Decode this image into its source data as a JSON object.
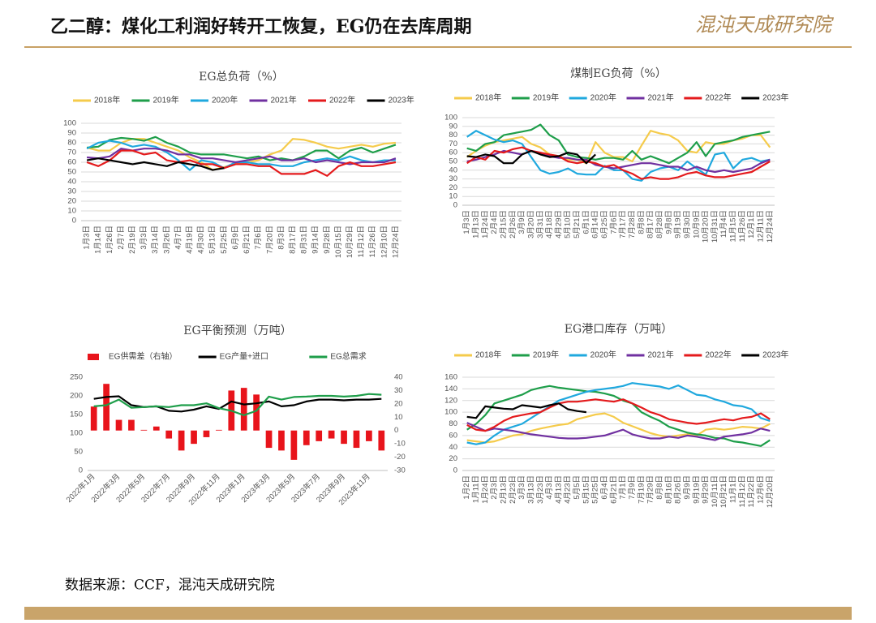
{
  "header": {
    "title": "乙二醇：煤化工利润好转开工恢复，EG仍在去库周期",
    "logo": "混沌天成研究院"
  },
  "footer": {
    "source": "数据来源：CCF，混沌天成研究院"
  },
  "chart_data": [
    {
      "type": "line",
      "title": "EG总负荷（%）",
      "ylim": [
        0,
        100
      ],
      "yticks": [
        0,
        10,
        20,
        30,
        40,
        50,
        60,
        70,
        80,
        90,
        100
      ],
      "grid": true,
      "categories": [
        "1月3日",
        "1月14日",
        "1月26日",
        "2月7日",
        "2月19日",
        "3月3日",
        "3月14日",
        "3月26日",
        "4月7日",
        "4月19日",
        "4月30日",
        "5月13日",
        "5月25日",
        "6月9日",
        "6月21日",
        "7月6日",
        "7月20日",
        "8月3日",
        "8月17日",
        "8月31日",
        "9月14日",
        "9月28日",
        "10月15日",
        "10月29日",
        "11月12日",
        "11月26日",
        "12月10日",
        "12月24日"
      ],
      "series": [
        {
          "name": "2018年",
          "color": "#f5cb4b",
          "values": [
            75,
            72,
            72,
            80,
            84,
            84,
            80,
            76,
            72,
            65,
            60,
            52,
            55,
            58,
            60,
            62,
            68,
            72,
            84,
            83,
            80,
            76,
            74,
            76,
            78,
            76,
            79,
            80
          ]
        },
        {
          "name": "2019年",
          "color": "#1e9e4a",
          "values": [
            75,
            76,
            83,
            85,
            84,
            82,
            86,
            80,
            76,
            70,
            68,
            68,
            68,
            66,
            64,
            66,
            62,
            64,
            62,
            66,
            72,
            72,
            64,
            72,
            75,
            70,
            74,
            78
          ]
        },
        {
          "name": "2020年",
          "color": "#1fa8de",
          "values": [
            74,
            80,
            82,
            80,
            76,
            78,
            76,
            70,
            62,
            52,
            62,
            60,
            54,
            60,
            60,
            58,
            58,
            56,
            56,
            60,
            62,
            64,
            62,
            66,
            62,
            60,
            62,
            62
          ]
        },
        {
          "name": "2021年",
          "color": "#7030a0",
          "values": [
            65,
            64,
            66,
            74,
            72,
            74,
            74,
            72,
            68,
            68,
            64,
            64,
            62,
            60,
            62,
            64,
            66,
            62,
            62,
            64,
            60,
            62,
            60,
            58,
            60,
            60,
            60,
            64
          ]
        },
        {
          "name": "2022年",
          "color": "#e41a1c",
          "values": [
            60,
            56,
            62,
            72,
            72,
            68,
            70,
            62,
            60,
            62,
            58,
            58,
            54,
            58,
            58,
            56,
            56,
            48,
            48,
            48,
            52,
            46,
            56,
            60,
            56,
            56,
            58,
            60
          ]
        },
        {
          "name": "2023年",
          "color": "#000000",
          "values": [
            62,
            64,
            62,
            60,
            58,
            60,
            58,
            56,
            60,
            58,
            56,
            52,
            54,
            null,
            null,
            null,
            null,
            null,
            null,
            null,
            null,
            null,
            null,
            null,
            null,
            null,
            null,
            null
          ]
        }
      ]
    },
    {
      "type": "line",
      "title": "煤制EG负荷（%）",
      "ylim": [
        0,
        100
      ],
      "yticks": [
        0,
        10,
        20,
        30,
        40,
        50,
        60,
        70,
        80,
        90,
        100
      ],
      "grid": true,
      "categories": [
        "1月3日",
        "1月13日",
        "1月24日",
        "2月4日",
        "2月15日",
        "2月26日",
        "3月9日",
        "3月20日",
        "3月31日",
        "4月18日",
        "4月29日",
        "5月10日",
        "5月21日",
        "6月1日",
        "6月14日",
        "6月25日",
        "7月6日",
        "7月17日",
        "7月28日",
        "8月8日",
        "8月17日",
        "8月28日",
        "9月8日",
        "9月19日",
        "9月30日",
        "10月9日",
        "10月20日",
        "10月31日",
        "11月4日",
        "11月15日",
        "11月26日",
        "12月1日",
        "12月11日",
        "12月24日"
      ],
      "series": [
        {
          "name": "2018年",
          "color": "#f5cb4b",
          "values": [
            55,
            62,
            68,
            72,
            74,
            76,
            78,
            70,
            66,
            58,
            56,
            52,
            52,
            48,
            72,
            60,
            55,
            55,
            50,
            68,
            85,
            82,
            80,
            74,
            62,
            60,
            72,
            70,
            70,
            74,
            76,
            80,
            80,
            66
          ]
        },
        {
          "name": "2019年",
          "color": "#1e9e4a",
          "values": [
            65,
            62,
            70,
            72,
            80,
            82,
            84,
            86,
            92,
            80,
            74,
            58,
            55,
            54,
            52,
            54,
            54,
            52,
            62,
            52,
            56,
            52,
            48,
            54,
            60,
            72,
            56,
            70,
            72,
            74,
            78,
            80,
            82,
            84
          ]
        },
        {
          "name": "2020年",
          "color": "#1fa8de",
          "values": [
            78,
            85,
            80,
            75,
            72,
            74,
            70,
            55,
            40,
            36,
            38,
            42,
            36,
            35,
            35,
            45,
            40,
            40,
            30,
            28,
            38,
            42,
            44,
            40,
            50,
            42,
            35,
            58,
            60,
            42,
            52,
            54,
            50,
            52
          ]
        },
        {
          "name": "2021年",
          "color": "#7030a0",
          "values": [
            50,
            52,
            55,
            58,
            62,
            60,
            58,
            62,
            60,
            56,
            54,
            54,
            52,
            52,
            46,
            44,
            42,
            44,
            46,
            48,
            48,
            46,
            44,
            44,
            40,
            44,
            40,
            38,
            40,
            38,
            40,
            42,
            48,
            52
          ]
        },
        {
          "name": "2022年",
          "color": "#e41a1c",
          "values": [
            48,
            55,
            52,
            62,
            60,
            64,
            66,
            62,
            60,
            58,
            56,
            50,
            48,
            50,
            48,
            44,
            46,
            40,
            36,
            30,
            32,
            30,
            30,
            32,
            36,
            38,
            34,
            32,
            32,
            34,
            36,
            38,
            44,
            50
          ]
        },
        {
          "name": "2023年",
          "color": "#000000",
          "values": [
            56,
            55,
            58,
            56,
            48,
            48,
            58,
            62,
            58,
            55,
            56,
            60,
            58,
            48,
            58,
            null,
            null,
            null,
            null,
            null,
            null,
            null,
            null,
            null,
            null,
            null,
            null,
            null,
            null,
            null,
            null,
            null,
            null,
            null
          ]
        }
      ]
    },
    {
      "type": "bar_line",
      "title": "EG平衡预测（万吨）",
      "ylim": [
        0,
        250
      ],
      "yticks": [
        0,
        50,
        100,
        150,
        200,
        250
      ],
      "y2lim": [
        -30,
        40
      ],
      "y2ticks": [
        -30,
        -20,
        -10,
        0,
        10,
        20,
        30,
        40
      ],
      "grid": false,
      "categories": [
        "2022年1月",
        null,
        "2022年3月",
        null,
        "2022年5月",
        null,
        "2022年7月",
        null,
        "2022年9月",
        null,
        "2022年11月",
        null,
        "2023年1月",
        null,
        "2023年3月",
        null,
        "2023年5月",
        null,
        "2023年7月",
        null,
        "2023年9月",
        null,
        "2023年11月",
        null
      ],
      "series": [
        {
          "name": "EG供需差（右轴）",
          "kind": "bar",
          "axis": "y2",
          "color": "#e8141b",
          "values": [
            18,
            35,
            8,
            8,
            0.5,
            3,
            -6,
            -15,
            -10,
            -5,
            0.5,
            30,
            32,
            27,
            -13,
            -15,
            -22,
            -11,
            -8,
            -6,
            -10,
            -13,
            -8,
            -15
          ]
        },
        {
          "name": "EG产量+进口",
          "color": "#000000",
          "values": [
            192,
            197,
            199,
            175,
            170,
            172,
            160,
            158,
            163,
            172,
            165,
            185,
            177,
            180,
            185,
            172,
            175,
            185,
            190,
            190,
            188,
            190,
            190,
            192
          ]
        },
        {
          "name": "EG总需求",
          "color": "#1e9e4a",
          "values": [
            172,
            175,
            190,
            168,
            170,
            172,
            170,
            175,
            175,
            180,
            167,
            160,
            148,
            160,
            198,
            190,
            197,
            198,
            200,
            200,
            198,
            200,
            205,
            203
          ]
        }
      ]
    },
    {
      "type": "line",
      "title": "EG港口库存（万吨）",
      "ylim": [
        0,
        160
      ],
      "yticks": [
        0,
        20,
        40,
        60,
        80,
        100,
        120,
        140,
        160
      ],
      "grid": true,
      "categories": [
        "1月2日",
        "1月11日",
        "1月24日",
        "2月3日",
        "2月13日",
        "2月23日",
        "3月3日",
        "3月13日",
        "3月23日",
        "4月3日",
        "4月13日",
        "4月23日",
        "5月5日",
        "5月15日",
        "5月25日",
        "6月4日",
        "6月21日",
        "7月1日",
        "7月9日",
        "7月19日",
        "7月29日",
        "8月8日",
        "8月16日",
        "8月26日",
        "9月9日",
        "9月19日",
        "9月29日",
        "10月11日",
        "10月21日",
        "11月1日",
        "11月12日",
        "11月22日",
        "12月6日",
        "12月20日"
      ],
      "series": [
        {
          "name": "2018年",
          "color": "#f5cb4b",
          "values": [
            52,
            50,
            48,
            50,
            55,
            60,
            62,
            68,
            72,
            75,
            78,
            80,
            88,
            92,
            96,
            98,
            92,
            82,
            76,
            70,
            64,
            60,
            58,
            60,
            62,
            60,
            70,
            72,
            70,
            72,
            75,
            74,
            72,
            80
          ]
        },
        {
          "name": "2019年",
          "color": "#1e9e4a",
          "values": [
            70,
            80,
            95,
            115,
            120,
            125,
            130,
            138,
            142,
            145,
            142,
            140,
            138,
            136,
            135,
            132,
            128,
            120,
            115,
            100,
            92,
            85,
            75,
            70,
            65,
            62,
            60,
            56,
            55,
            50,
            48,
            45,
            42,
            52
          ]
        },
        {
          "name": "2020年",
          "color": "#1fa8de",
          "values": [
            48,
            45,
            48,
            60,
            70,
            75,
            80,
            90,
            100,
            110,
            120,
            125,
            130,
            135,
            138,
            140,
            142,
            145,
            150,
            148,
            146,
            144,
            140,
            146,
            138,
            130,
            128,
            122,
            118,
            112,
            110,
            105,
            90,
            85
          ]
        },
        {
          "name": "2021年",
          "color": "#7030a0",
          "values": [
            82,
            75,
            68,
            72,
            70,
            68,
            65,
            62,
            60,
            58,
            56,
            55,
            55,
            56,
            58,
            60,
            65,
            70,
            62,
            58,
            55,
            55,
            58,
            56,
            60,
            58,
            55,
            52,
            58,
            60,
            62,
            65,
            72,
            68
          ]
        },
        {
          "name": "2022年",
          "color": "#e41a1c",
          "values": [
            78,
            70,
            68,
            75,
            85,
            92,
            95,
            98,
            100,
            108,
            115,
            118,
            118,
            120,
            122,
            120,
            118,
            122,
            115,
            108,
            100,
            95,
            88,
            85,
            82,
            80,
            82,
            85,
            88,
            86,
            90,
            92,
            98,
            88
          ]
        },
        {
          "name": "2023年",
          "color": "#000000",
          "values": [
            92,
            90,
            110,
            108,
            106,
            105,
            112,
            110,
            108,
            112,
            115,
            105,
            102,
            100,
            null,
            null,
            null,
            null,
            null,
            null,
            null,
            null,
            null,
            null,
            null,
            null,
            null,
            null,
            null,
            null,
            null,
            null,
            null,
            null
          ]
        }
      ]
    }
  ]
}
